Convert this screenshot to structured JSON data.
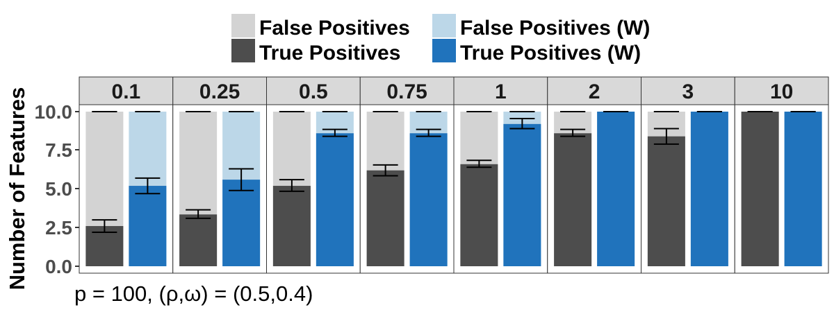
{
  "chart_data": {
    "type": "bar",
    "ylabel": "Number of Features",
    "ylim": [
      0,
      10
    ],
    "yticks": [
      "0.0",
      "2.5",
      "5.0",
      "7.5",
      "10.0"
    ],
    "caption": "p = 100, (ρ,ω) = (0.5,0.4)",
    "legend": {
      "placement": "top",
      "items": [
        {
          "label": "False Positives",
          "color": "#d3d3d3"
        },
        {
          "label": "False Positives (W)",
          "color": "#bcd7e8"
        },
        {
          "label": "True Positives",
          "color": "#4d4d4d"
        },
        {
          "label": "True Positives (W)",
          "color": "#2073bc"
        }
      ]
    },
    "colors": {
      "fp": "#d3d3d3",
      "fp_w": "#bcd7e8",
      "tp": "#4d4d4d",
      "tp_w": "#2073bc",
      "strip": "#d9d9d9"
    },
    "facets": [
      {
        "label": "0.1",
        "bars": [
          {
            "series": "unweighted",
            "tp": 2.6,
            "err": [
              2.2,
              3.0
            ],
            "total_err": [
              10.0,
              10.0
            ]
          },
          {
            "series": "weighted",
            "tp": 5.2,
            "err": [
              4.7,
              5.7
            ],
            "total_err": [
              10.0,
              10.0
            ]
          }
        ]
      },
      {
        "label": "0.25",
        "bars": [
          {
            "series": "unweighted",
            "tp": 3.35,
            "err": [
              3.1,
              3.65
            ],
            "total_err": [
              10.0,
              10.0
            ]
          },
          {
            "series": "weighted",
            "tp": 5.6,
            "err": [
              4.9,
              6.3
            ],
            "total_err": [
              10.0,
              10.0
            ]
          }
        ]
      },
      {
        "label": "0.5",
        "bars": [
          {
            "series": "unweighted",
            "tp": 5.2,
            "err": [
              4.85,
              5.6
            ],
            "total_err": [
              10.0,
              10.0
            ]
          },
          {
            "series": "weighted",
            "tp": 8.6,
            "err": [
              8.4,
              8.85
            ],
            "total_err": [
              10.0,
              10.0
            ]
          }
        ]
      },
      {
        "label": "0.75",
        "bars": [
          {
            "series": "unweighted",
            "tp": 6.2,
            "err": [
              5.85,
              6.55
            ],
            "total_err": [
              10.0,
              10.0
            ]
          },
          {
            "series": "weighted",
            "tp": 8.6,
            "err": [
              8.4,
              8.85
            ],
            "total_err": [
              10.0,
              10.0
            ]
          }
        ]
      },
      {
        "label": "1",
        "bars": [
          {
            "series": "unweighted",
            "tp": 6.6,
            "err": [
              6.4,
              6.85
            ],
            "total_err": [
              10.0,
              10.0
            ]
          },
          {
            "series": "weighted",
            "tp": 9.2,
            "err": [
              8.9,
              9.55
            ],
            "total_err": [
              10.0,
              10.0
            ]
          }
        ]
      },
      {
        "label": "2",
        "bars": [
          {
            "series": "unweighted",
            "tp": 8.6,
            "err": [
              8.4,
              8.85
            ],
            "total_err": [
              10.0,
              10.0
            ]
          },
          {
            "series": "weighted",
            "tp": 10.0,
            "err": [
              10.0,
              10.0
            ],
            "total_err": null
          }
        ]
      },
      {
        "label": "3",
        "bars": [
          {
            "series": "unweighted",
            "tp": 8.4,
            "err": [
              7.9,
              8.9
            ],
            "total_err": [
              10.0,
              10.0
            ]
          },
          {
            "series": "weighted",
            "tp": 10.0,
            "err": [
              10.0,
              10.0
            ],
            "total_err": null
          }
        ]
      },
      {
        "label": "10",
        "bars": [
          {
            "series": "unweighted",
            "tp": 10.0,
            "err": [
              10.0,
              10.0
            ],
            "total_err": null
          },
          {
            "series": "weighted",
            "tp": 10.0,
            "err": [
              10.0,
              10.0
            ],
            "total_err": null
          }
        ]
      }
    ]
  }
}
